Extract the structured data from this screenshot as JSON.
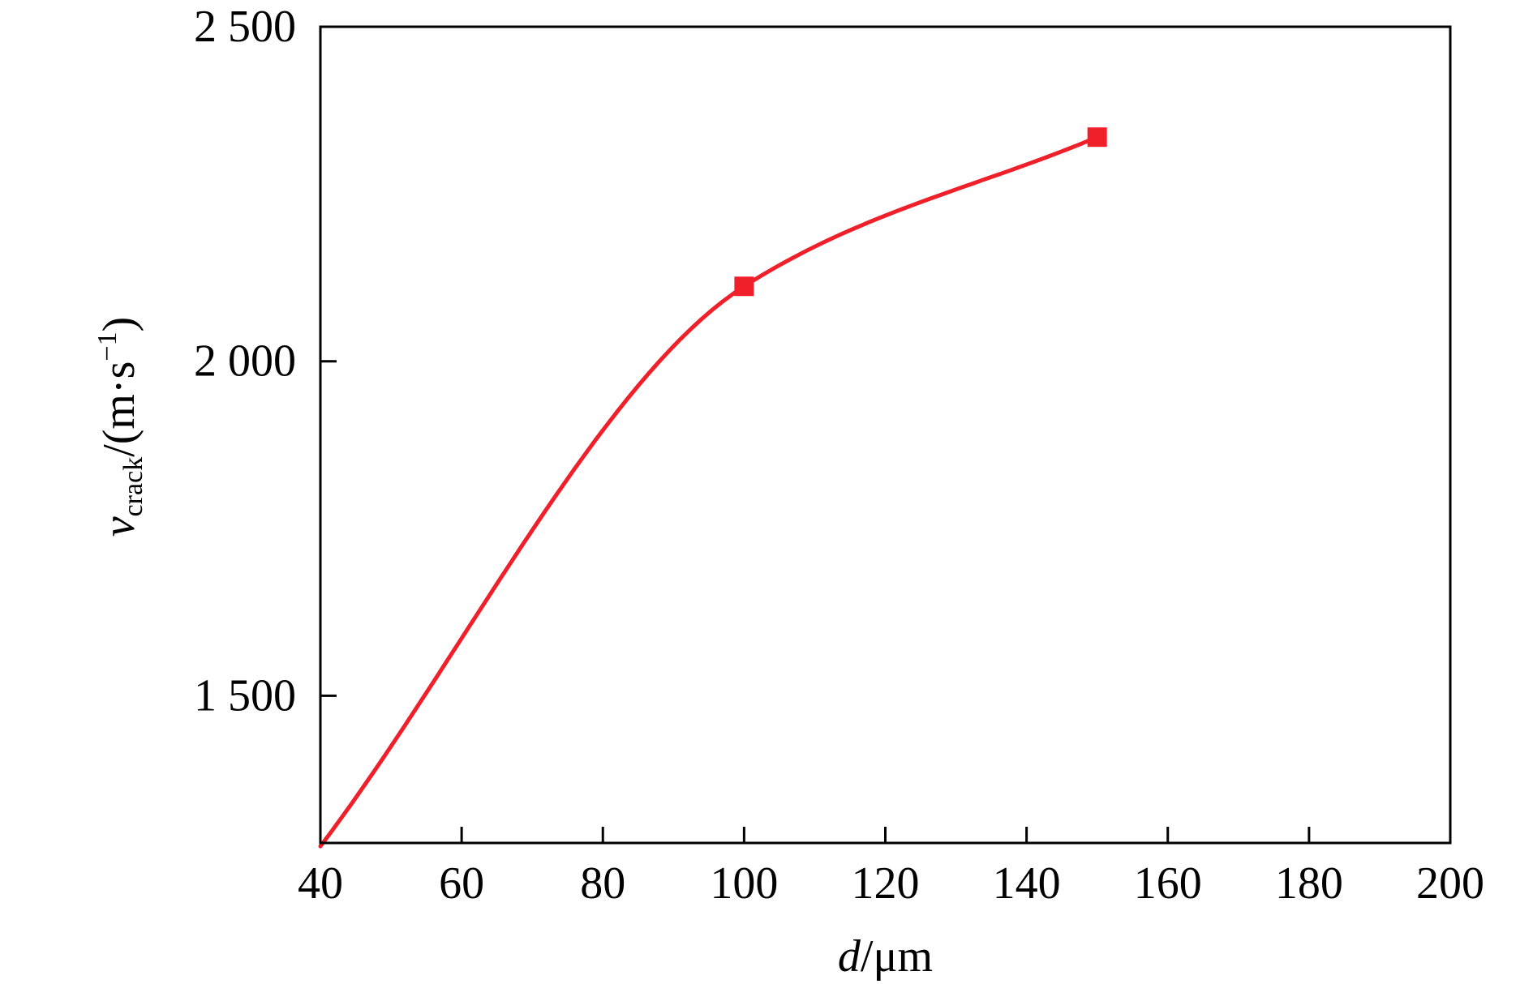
{
  "chart_data": {
    "type": "line",
    "title": "",
    "xlabel": {
      "var": "d",
      "unit": "/μm"
    },
    "ylabel": {
      "var": "v",
      "sub": "crack",
      "unit_pre": "/(m·s",
      "sup": "−1",
      "unit_post": ")"
    },
    "xlim": [
      40,
      200
    ],
    "ylim": [
      1280,
      2500
    ],
    "x_ticks": [
      40,
      60,
      80,
      100,
      120,
      140,
      160,
      180,
      200
    ],
    "x_tick_labels": [
      "40",
      "60",
      "80",
      "100",
      "120",
      "140",
      "160",
      "180",
      "200"
    ],
    "y_ticks": [
      1500,
      2000,
      2500
    ],
    "y_tick_labels": [
      "1 500",
      "2 000",
      "2 500"
    ],
    "grid": false,
    "series": [
      {
        "color": "#f0202a",
        "marker": "square",
        "x": [
          40,
          100,
          150
        ],
        "y": [
          1275,
          2112,
          2335
        ],
        "marker_points": [
          [
            100,
            2112
          ],
          [
            150,
            2335
          ]
        ]
      }
    ]
  }
}
